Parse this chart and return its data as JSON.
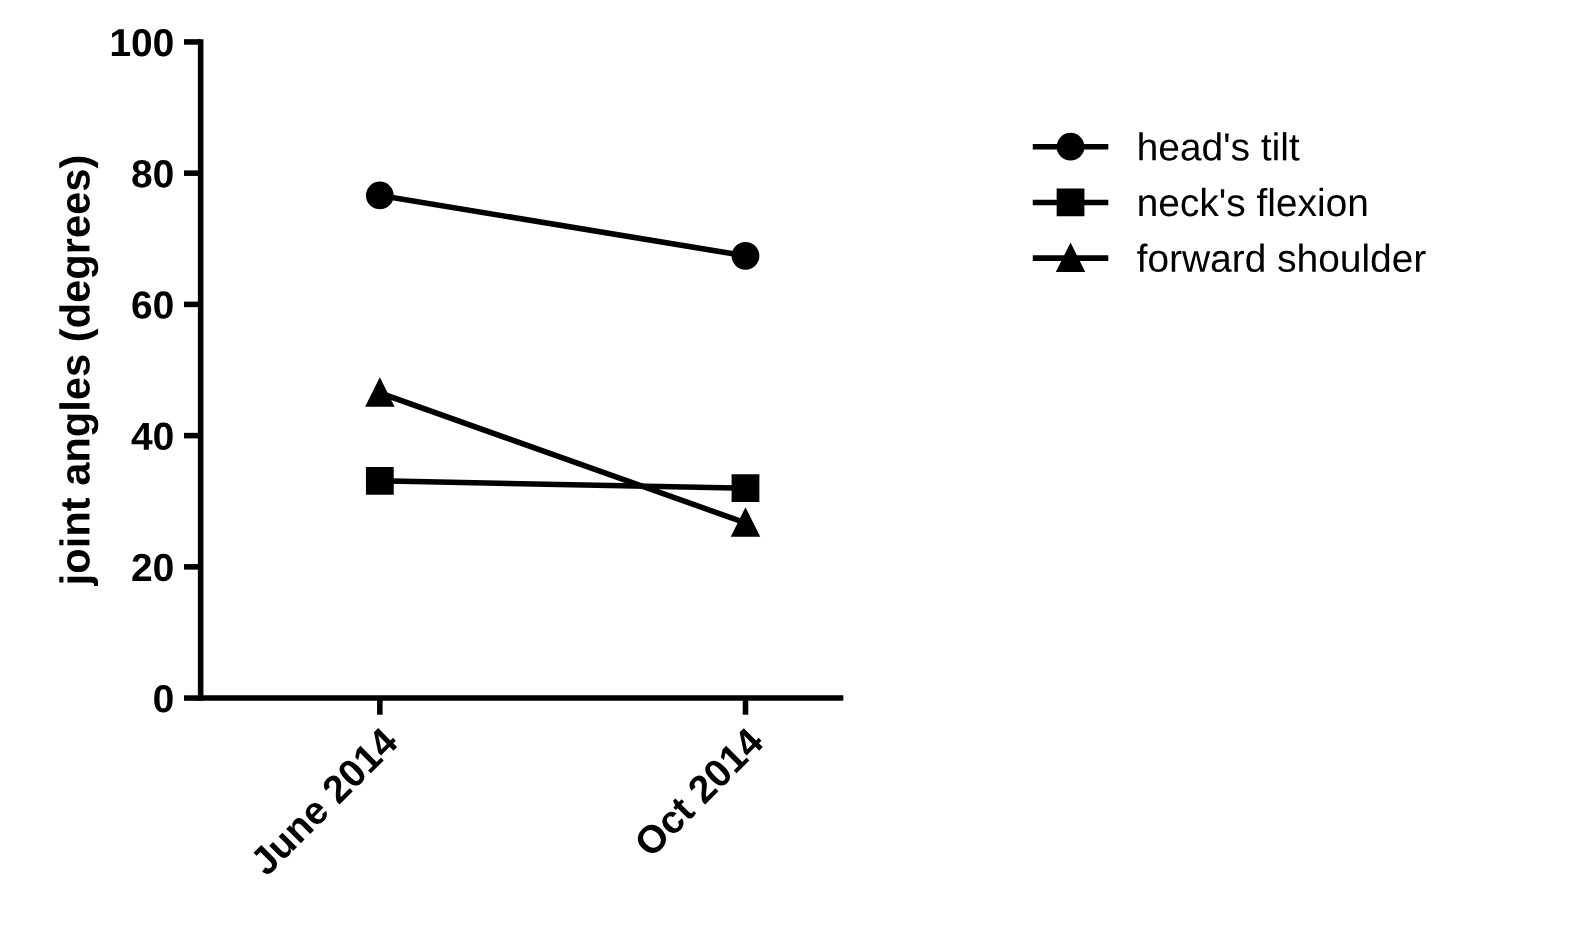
{
  "chart_data": {
    "type": "line",
    "ylabel": "joint angles (degrees)",
    "categories": [
      "June 2014",
      "Oct 2014"
    ],
    "series": [
      {
        "name": "head's tilt",
        "color": "#000000",
        "marker": "circle",
        "values": [
          76.6,
          67.4
        ]
      },
      {
        "name": "neck's flexion",
        "color": "#000000",
        "marker": "square",
        "values": [
          33.1,
          32.0
        ]
      },
      {
        "name": "forward shoulder",
        "color": "#000000",
        "marker": "triangle",
        "values": [
          46.5,
          26.7
        ]
      }
    ],
    "ylim": [
      0,
      100
    ],
    "yticks": [
      0,
      20,
      40,
      60,
      80,
      100
    ],
    "grid": false,
    "legend": "right",
    "line_style": "solid"
  }
}
